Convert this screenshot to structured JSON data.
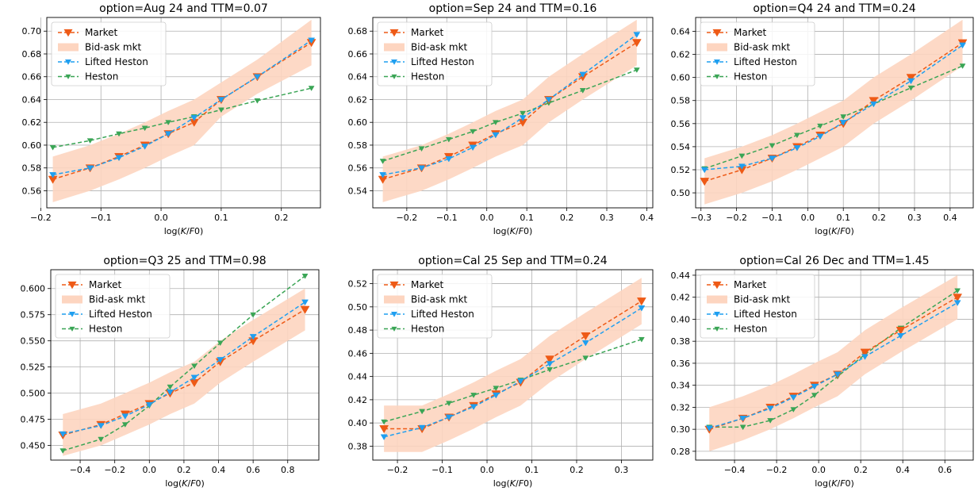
{
  "colors": {
    "market": "#ee5a16",
    "bidask": "#fdd5c0",
    "lifted": "#1f9ff0",
    "heston": "#3aa555",
    "grid": "#b0b0b0"
  },
  "xlabel_text": "log(K/F0)",
  "legend_labels": [
    "Market",
    "Bid-ask mkt",
    "Lifted Heston",
    "Heston"
  ],
  "chart_data": [
    {
      "type": "line",
      "title": "option=Aug 24 and TTM=0.07",
      "xlabel": "log(K/F0)",
      "xlim": [
        -0.19,
        0.265
      ],
      "ylim": [
        0.545,
        0.712
      ],
      "xticks": [
        -0.2,
        -0.1,
        0.0,
        0.1,
        0.2
      ],
      "xtick_labels": [
        "−0.2",
        "−0.1",
        "0.0",
        "0.1",
        "0.2"
      ],
      "yticks": [
        0.56,
        0.58,
        0.6,
        0.62,
        0.64,
        0.66,
        0.68,
        0.7
      ],
      "ytick_labels": [
        "0.56",
        "0.58",
        "0.60",
        "0.62",
        "0.64",
        "0.66",
        "0.68",
        "0.70"
      ],
      "x": [
        -0.18,
        -0.118,
        -0.07,
        -0.027,
        0.012,
        0.055,
        0.1,
        0.16,
        0.25
      ],
      "series": [
        {
          "name": "Market",
          "values": [
            0.57,
            0.58,
            0.59,
            0.6,
            0.61,
            0.62,
            0.64,
            0.66,
            0.69
          ]
        },
        {
          "name": "Lifted Heston",
          "values": [
            0.574,
            0.58,
            0.589,
            0.599,
            0.61,
            0.624,
            0.64,
            0.66,
            0.692
          ]
        },
        {
          "name": "Heston",
          "values": [
            0.598,
            0.604,
            0.61,
            0.615,
            0.62,
            0.625,
            0.631,
            0.639,
            0.65
          ]
        }
      ],
      "bidask_low": [
        0.55,
        0.56,
        0.57,
        0.58,
        0.59,
        0.6,
        0.625,
        0.645,
        0.67
      ],
      "bidask_high": [
        0.59,
        0.6,
        0.61,
        0.62,
        0.63,
        0.64,
        0.655,
        0.675,
        0.71
      ],
      "legend": "top-left",
      "grid": true
    },
    {
      "type": "line",
      "title": "option=Sep 24 and TTM=0.16",
      "xlabel": "log(K/F0)",
      "xlim": [
        -0.285,
        0.415
      ],
      "ylim": [
        0.525,
        0.692
      ],
      "xticks": [
        -0.2,
        -0.1,
        0.0,
        0.1,
        0.2,
        0.3,
        0.4
      ],
      "xtick_labels": [
        "−0.2",
        "−0.1",
        "0.0",
        "0.1",
        "0.2",
        "0.3",
        "0.4"
      ],
      "yticks": [
        0.54,
        0.56,
        0.58,
        0.6,
        0.62,
        0.64,
        0.66,
        0.68
      ],
      "ytick_labels": [
        "0.54",
        "0.56",
        "0.58",
        "0.60",
        "0.62",
        "0.64",
        "0.66",
        "0.68"
      ],
      "x": [
        -0.26,
        -0.163,
        -0.095,
        -0.035,
        0.022,
        0.09,
        0.155,
        0.24,
        0.375
      ],
      "series": [
        {
          "name": "Market",
          "values": [
            0.55,
            0.56,
            0.57,
            0.58,
            0.59,
            0.6,
            0.62,
            0.64,
            0.67
          ]
        },
        {
          "name": "Lifted Heston",
          "values": [
            0.554,
            0.56,
            0.568,
            0.578,
            0.589,
            0.604,
            0.62,
            0.642,
            0.677
          ]
        },
        {
          "name": "Heston",
          "values": [
            0.566,
            0.577,
            0.585,
            0.592,
            0.6,
            0.608,
            0.617,
            0.628,
            0.646
          ]
        }
      ],
      "bidask_low": [
        0.53,
        0.54,
        0.55,
        0.56,
        0.57,
        0.58,
        0.6,
        0.62,
        0.65
      ],
      "bidask_high": [
        0.57,
        0.58,
        0.59,
        0.6,
        0.61,
        0.62,
        0.64,
        0.66,
        0.69
      ],
      "legend": "top-left",
      "grid": true
    },
    {
      "type": "line",
      "title": "option=Q4 24 and TTM=0.24",
      "xlabel": "log(K/F0)",
      "xlim": [
        -0.315,
        0.465
      ],
      "ylim": [
        0.487,
        0.652
      ],
      "xticks": [
        -0.3,
        -0.2,
        -0.1,
        0.0,
        0.1,
        0.2,
        0.3,
        0.4
      ],
      "xtick_labels": [
        "−0.3",
        "−0.2",
        "−0.1",
        "0.0",
        "0.1",
        "0.2",
        "0.3",
        "0.4"
      ],
      "yticks": [
        0.5,
        0.52,
        0.54,
        0.56,
        0.58,
        0.6,
        0.62,
        0.64
      ],
      "ytick_labels": [
        "0.50",
        "0.52",
        "0.54",
        "0.56",
        "0.58",
        "0.60",
        "0.62",
        "0.64"
      ],
      "x": [
        -0.29,
        -0.185,
        -0.1,
        -0.03,
        0.035,
        0.1,
        0.185,
        0.29,
        0.435
      ],
      "series": [
        {
          "name": "Market",
          "values": [
            0.51,
            0.52,
            0.53,
            0.54,
            0.55,
            0.56,
            0.58,
            0.6,
            0.63
          ]
        },
        {
          "name": "Lifted Heston",
          "values": [
            0.52,
            0.523,
            0.53,
            0.539,
            0.549,
            0.561,
            0.577,
            0.597,
            0.628
          ]
        },
        {
          "name": "Heston",
          "values": [
            0.521,
            0.532,
            0.541,
            0.55,
            0.558,
            0.566,
            0.577,
            0.591,
            0.61
          ]
        }
      ],
      "bidask_low": [
        0.49,
        0.5,
        0.51,
        0.52,
        0.53,
        0.54,
        0.56,
        0.58,
        0.61
      ],
      "bidask_high": [
        0.53,
        0.54,
        0.55,
        0.56,
        0.57,
        0.58,
        0.6,
        0.62,
        0.65
      ],
      "legend": "top-left",
      "grid": true
    },
    {
      "type": "line",
      "title": "option=Q3 25 and TTM=0.98",
      "xlabel": "log(K/F0)",
      "xlim": [
        -0.57,
        0.98
      ],
      "ylim": [
        0.436,
        0.618
      ],
      "xticks": [
        -0.4,
        -0.2,
        0.0,
        0.2,
        0.4,
        0.6,
        0.8
      ],
      "xtick_labels": [
        "−0.4",
        "−0.2",
        "0.0",
        "0.2",
        "0.4",
        "0.6",
        "0.8"
      ],
      "yticks": [
        0.45,
        0.475,
        0.5,
        0.525,
        0.55,
        0.575,
        0.6
      ],
      "ytick_labels": [
        "0.450",
        "0.475",
        "0.500",
        "0.525",
        "0.550",
        "0.575",
        "0.600"
      ],
      "x": [
        -0.5,
        -0.28,
        -0.14,
        0.0,
        0.12,
        0.26,
        0.41,
        0.6,
        0.9
      ],
      "series": [
        {
          "name": "Market",
          "values": [
            0.46,
            0.47,
            0.48,
            0.49,
            0.5,
            0.51,
            0.53,
            0.55,
            0.58
          ]
        },
        {
          "name": "Lifted Heston",
          "values": [
            0.461,
            0.469,
            0.478,
            0.489,
            0.501,
            0.515,
            0.532,
            0.554,
            0.587
          ]
        },
        {
          "name": "Heston",
          "values": [
            0.445,
            0.456,
            0.47,
            0.488,
            0.506,
            0.526,
            0.548,
            0.575,
            0.612
          ]
        }
      ],
      "bidask_low": [
        0.44,
        0.45,
        0.46,
        0.47,
        0.48,
        0.49,
        0.51,
        0.53,
        0.56
      ],
      "bidask_high": [
        0.48,
        0.49,
        0.5,
        0.51,
        0.52,
        0.53,
        0.55,
        0.57,
        0.6
      ],
      "legend": "top-left",
      "grid": true
    },
    {
      "type": "line",
      "title": "option=Cal 25 Sep and TTM=0.24",
      "xlabel": "log(K/F0)",
      "xlim": [
        -0.255,
        0.37
      ],
      "ylim": [
        0.368,
        0.532
      ],
      "xticks": [
        -0.2,
        -0.1,
        0.0,
        0.1,
        0.2,
        0.3
      ],
      "xtick_labels": [
        "−0.2",
        "−0.1",
        "0.0",
        "0.1",
        "0.2",
        "0.3"
      ],
      "yticks": [
        0.38,
        0.4,
        0.42,
        0.44,
        0.46,
        0.48,
        0.5,
        0.52
      ],
      "ytick_labels": [
        "0.38",
        "0.40",
        "0.42",
        "0.44",
        "0.46",
        "0.48",
        "0.50",
        "0.52"
      ],
      "x": [
        -0.23,
        -0.145,
        -0.085,
        -0.03,
        0.02,
        0.075,
        0.14,
        0.22,
        0.345
      ],
      "series": [
        {
          "name": "Market",
          "values": [
            0.395,
            0.395,
            0.405,
            0.415,
            0.425,
            0.435,
            0.455,
            0.475,
            0.505
          ]
        },
        {
          "name": "Lifted Heston",
          "values": [
            0.388,
            0.396,
            0.405,
            0.414,
            0.424,
            0.436,
            0.451,
            0.469,
            0.499
          ]
        },
        {
          "name": "Heston",
          "values": [
            0.401,
            0.41,
            0.417,
            0.424,
            0.43,
            0.437,
            0.446,
            0.456,
            0.472
          ]
        }
      ],
      "bidask_low": [
        0.375,
        0.375,
        0.385,
        0.395,
        0.405,
        0.415,
        0.435,
        0.455,
        0.485
      ],
      "bidask_high": [
        0.415,
        0.415,
        0.425,
        0.435,
        0.445,
        0.455,
        0.475,
        0.495,
        0.525
      ],
      "legend": "top-left",
      "grid": true
    },
    {
      "type": "line",
      "title": "option=Cal 26 Dec and TTM=1.45",
      "xlabel": "log(K/F0)",
      "xlim": [
        -0.585,
        0.735
      ],
      "ylim": [
        0.272,
        0.445
      ],
      "xticks": [
        -0.4,
        -0.2,
        0.0,
        0.2,
        0.4,
        0.6
      ],
      "xtick_labels": [
        "−0.4",
        "−0.2",
        "0.0",
        "0.2",
        "0.4",
        "0.6"
      ],
      "yticks": [
        0.28,
        0.3,
        0.32,
        0.34,
        0.36,
        0.38,
        0.4,
        0.42,
        0.44
      ],
      "ytick_labels": [
        "0.28",
        "0.30",
        "0.32",
        "0.34",
        "0.36",
        "0.38",
        "0.40",
        "0.42",
        "0.44"
      ],
      "x": [
        -0.52,
        -0.36,
        -0.23,
        -0.12,
        -0.02,
        0.09,
        0.22,
        0.39,
        0.66
      ],
      "series": [
        {
          "name": "Market",
          "values": [
            0.3,
            0.31,
            0.32,
            0.33,
            0.34,
            0.35,
            0.37,
            0.39,
            0.42
          ]
        },
        {
          "name": "Lifted Heston",
          "values": [
            0.301,
            0.31,
            0.319,
            0.329,
            0.339,
            0.35,
            0.366,
            0.385,
            0.415
          ]
        },
        {
          "name": "Heston",
          "values": [
            0.302,
            0.302,
            0.308,
            0.318,
            0.331,
            0.348,
            0.368,
            0.392,
            0.426
          ]
        }
      ],
      "bidask_low": [
        0.28,
        0.29,
        0.3,
        0.31,
        0.32,
        0.33,
        0.35,
        0.37,
        0.4
      ],
      "bidask_high": [
        0.32,
        0.33,
        0.34,
        0.35,
        0.36,
        0.37,
        0.39,
        0.41,
        0.44
      ],
      "legend": "top-left",
      "grid": true
    }
  ]
}
